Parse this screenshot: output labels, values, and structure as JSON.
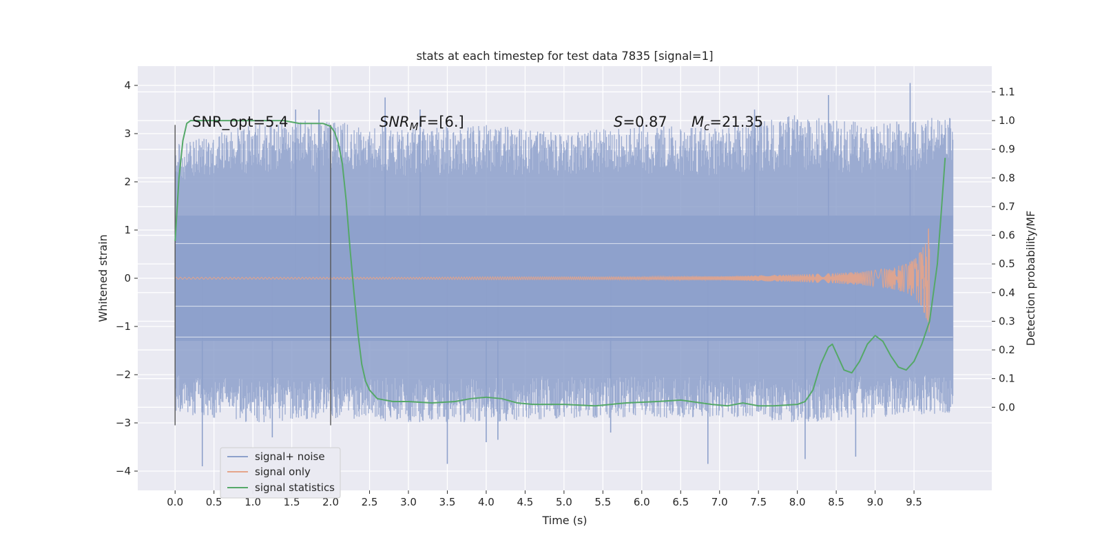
{
  "chart_data": {
    "type": "line",
    "title": "stats at each timestep for test data 7835 [signal=1]",
    "xlabel": "Time (s)",
    "ylabel": "Whitened strain",
    "y2label": "Detection probability/MF",
    "xlim": [
      -0.48,
      10.5
    ],
    "ylim": [
      -4.4,
      4.4
    ],
    "y2lim": [
      -0.29,
      1.19
    ],
    "x_ticks": [
      0.0,
      0.5,
      1.0,
      1.5,
      2.0,
      2.5,
      3.0,
      3.5,
      4.0,
      4.5,
      5.0,
      5.5,
      6.0,
      6.5,
      7.0,
      7.5,
      8.0,
      8.5,
      9.0,
      9.5
    ],
    "x_tick_labels": [
      "0.0",
      "0.5",
      "1.0",
      "1.5",
      "2.0",
      "2.5",
      "3.0",
      "3.5",
      "4.0",
      "4.5",
      "5.0",
      "5.5",
      "6.0",
      "6.5",
      "7.0",
      "7.5",
      "8.0",
      "8.5",
      "9.0",
      "9.5"
    ],
    "y_ticks": [
      -4,
      -3,
      -2,
      -1,
      0,
      1,
      2,
      3,
      4
    ],
    "y_tick_labels": [
      "−4",
      "−3",
      "−2",
      "−1",
      "0",
      "1",
      "2",
      "3",
      "4"
    ],
    "y2_ticks": [
      0.0,
      0.1,
      0.2,
      0.3,
      0.4,
      0.5,
      0.6,
      0.7,
      0.8,
      0.9,
      1.0,
      1.1
    ],
    "y2_tick_labels": [
      "0.0",
      "0.1",
      "0.2",
      "0.3",
      "0.4",
      "0.5",
      "0.6",
      "0.7",
      "0.8",
      "0.9",
      "1.0",
      "1.1"
    ],
    "grid": true,
    "legend_position": "lower-left",
    "annotations": {
      "snr_opt": "SNR_opt=5.4",
      "snr_mf_base": "SNR",
      "snr_mf_sub": "M",
      "snr_mf_rest": "F=[6.]",
      "s_name": "S",
      "s_value": "=0.87",
      "mc_name": "M",
      "mc_sub": "c",
      "mc_value": "=21.35"
    },
    "vertical_markers": [
      0.0,
      2.0
    ],
    "vertical_marker_range": [
      -3.05,
      3.18
    ],
    "series": [
      {
        "name": "signal+ noise",
        "color": "#8da0cb",
        "axis": "left",
        "x_range": [
          0.0,
          10.0
        ],
        "envelope_x": [
          0.0,
          1.0,
          2.0,
          3.0,
          4.0,
          5.0,
          6.0,
          7.0,
          8.0,
          9.0,
          10.0
        ],
        "envelope_upper": [
          2.8,
          3.2,
          3.3,
          3.1,
          3.2,
          3.0,
          3.2,
          3.1,
          3.4,
          3.2,
          3.4
        ],
        "envelope_lower": [
          -2.8,
          -3.0,
          -2.9,
          -3.0,
          -3.0,
          -2.9,
          -2.9,
          -2.9,
          -3.0,
          -2.9,
          -2.8
        ],
        "spikes": [
          [
            0.35,
            -3.9
          ],
          [
            1.25,
            -3.3
          ],
          [
            3.5,
            -3.85
          ],
          [
            4.0,
            -3.4
          ],
          [
            4.15,
            -3.35
          ],
          [
            6.85,
            -3.85
          ],
          [
            8.1,
            -3.75
          ],
          [
            8.75,
            -3.7
          ],
          [
            9.45,
            4.05
          ],
          [
            8.4,
            3.8
          ],
          [
            7.45,
            3.5
          ],
          [
            2.7,
            3.75
          ],
          [
            1.85,
            3.5
          ],
          [
            1.55,
            3.5
          ],
          [
            5.6,
            -3.2
          ],
          [
            3.15,
            3.5
          ]
        ]
      },
      {
        "name": "signal only",
        "color": "#e5a48a",
        "axis": "left",
        "x": [
          0.0,
          1.0,
          2.0,
          3.0,
          4.0,
          5.0,
          6.0,
          6.5,
          7.0,
          7.5,
          8.0,
          8.5,
          8.8,
          9.0,
          9.2,
          9.4,
          9.5,
          9.6,
          9.66,
          9.7
        ],
        "amplitude": [
          0.02,
          0.02,
          0.02,
          0.02,
          0.03,
          0.03,
          0.03,
          0.04,
          0.04,
          0.06,
          0.08,
          0.11,
          0.14,
          0.17,
          0.22,
          0.3,
          0.4,
          0.6,
          0.85,
          1.15
        ]
      },
      {
        "name": "signal statistics",
        "color": "#55a868",
        "axis": "right",
        "x": [
          0.0,
          0.05,
          0.1,
          0.15,
          0.2,
          0.3,
          0.5,
          1.0,
          1.4,
          1.6,
          1.8,
          1.9,
          2.0,
          2.05,
          2.1,
          2.15,
          2.2,
          2.25,
          2.3,
          2.35,
          2.4,
          2.45,
          2.5,
          2.6,
          2.8,
          3.0,
          3.3,
          3.6,
          3.8,
          4.0,
          4.2,
          4.4,
          4.6,
          5.0,
          5.4,
          5.8,
          6.2,
          6.5,
          6.9,
          7.1,
          7.3,
          7.5,
          7.7,
          8.0,
          8.1,
          8.2,
          8.3,
          8.4,
          8.45,
          8.5,
          8.6,
          8.7,
          8.8,
          8.9,
          9.0,
          9.1,
          9.2,
          9.3,
          9.4,
          9.5,
          9.6,
          9.7,
          9.8,
          9.85,
          9.9
        ],
        "y": [
          0.58,
          0.8,
          0.93,
          0.99,
          1.0,
          1.0,
          1.0,
          1.0,
          1.0,
          0.99,
          0.99,
          0.99,
          0.98,
          0.96,
          0.92,
          0.85,
          0.72,
          0.55,
          0.4,
          0.26,
          0.15,
          0.09,
          0.06,
          0.03,
          0.02,
          0.02,
          0.015,
          0.02,
          0.03,
          0.035,
          0.03,
          0.015,
          0.01,
          0.01,
          0.005,
          0.015,
          0.02,
          0.025,
          0.01,
          0.005,
          0.015,
          0.005,
          0.005,
          0.01,
          0.02,
          0.06,
          0.15,
          0.21,
          0.22,
          0.19,
          0.13,
          0.12,
          0.16,
          0.22,
          0.25,
          0.23,
          0.18,
          0.14,
          0.13,
          0.16,
          0.22,
          0.3,
          0.5,
          0.68,
          0.87
        ]
      }
    ]
  }
}
